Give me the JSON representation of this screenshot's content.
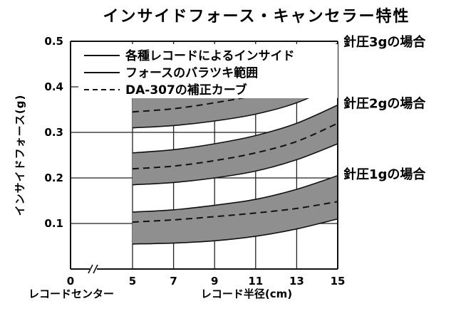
{
  "chart_data": {
    "type": "area",
    "title": "インサイドフォース・キャンセラー特性",
    "ylabel": "インサイドフォース(g)",
    "xlabel": "レコード半径(cm)",
    "x_center_label": "レコードセンター",
    "x_ticks": [
      "0",
      "5",
      "7",
      "9",
      "11",
      "13",
      "15"
    ],
    "y_ticks": [
      "0.1",
      "0.2",
      "0.3",
      "0.4",
      "0.5"
    ],
    "xlim": [
      5,
      15
    ],
    "ylim": [
      0,
      0.5
    ],
    "grid": true,
    "legend_position": "top-left",
    "legend": [
      {
        "style": "solid",
        "label": "各種レコードによるインサイド"
      },
      {
        "style": "solid",
        "label": "フォースのバラツキ範囲"
      },
      {
        "style": "dashed",
        "label": "DA-307の補正カーブ"
      }
    ],
    "x": [
      5,
      7,
      9,
      11,
      13,
      15
    ],
    "groups": [
      {
        "label": "針圧3gの場合",
        "upper": [
          0.385,
          0.392,
          0.405,
          0.425,
          0.455,
          0.495
        ],
        "lower": [
          0.31,
          0.315,
          0.325,
          0.34,
          0.365,
          0.405
        ],
        "correction": [
          0.345,
          0.352,
          0.365,
          0.382,
          0.41,
          0.455
        ]
      },
      {
        "label": "針圧2gの場合",
        "upper": [
          0.255,
          0.262,
          0.275,
          0.293,
          0.32,
          0.36
        ],
        "lower": [
          0.185,
          0.19,
          0.2,
          0.215,
          0.24,
          0.275
        ],
        "correction": [
          0.22,
          0.226,
          0.238,
          0.255,
          0.28,
          0.32
        ]
      },
      {
        "label": "針圧1gの場合",
        "upper": [
          0.125,
          0.13,
          0.14,
          0.153,
          0.175,
          0.205
        ],
        "lower": [
          0.055,
          0.057,
          0.062,
          0.072,
          0.088,
          0.11
        ],
        "correction": [
          0.103,
          0.108,
          0.115,
          0.123,
          0.133,
          0.148
        ]
      }
    ],
    "colors": {
      "band": "#8f8f8f",
      "line": "#111111",
      "background": "#ffffff"
    }
  }
}
